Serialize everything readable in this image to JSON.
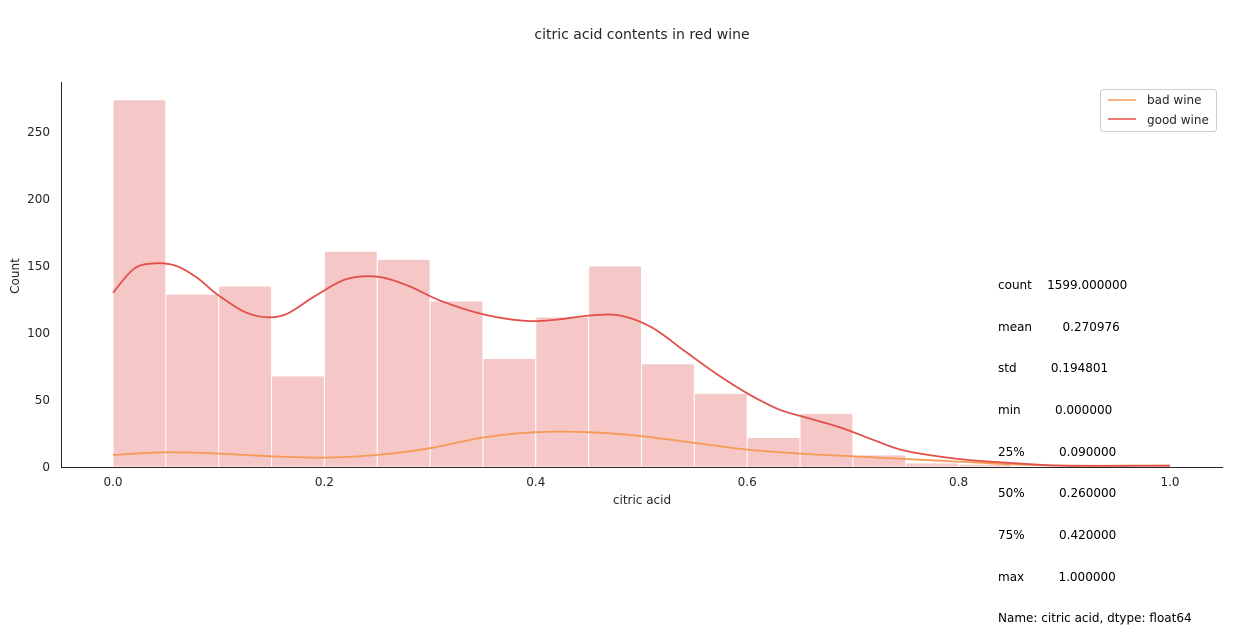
{
  "chart_data": {
    "type": "histogram",
    "title": "citric acid contents in red wine",
    "xlabel": "citric acid",
    "ylabel": "Count",
    "xlim": [
      -0.05,
      1.05
    ],
    "ylim": [
      0,
      288
    ],
    "x_ticks": [
      0.0,
      0.2,
      0.4,
      0.6,
      0.8,
      1.0
    ],
    "x_tick_labels": [
      "0.0",
      "0.2",
      "0.4",
      "0.6",
      "0.8",
      "1.0"
    ],
    "y_ticks": [
      0,
      50,
      100,
      150,
      200,
      250
    ],
    "y_tick_labels": [
      "0",
      "50",
      "100",
      "150",
      "200",
      "250"
    ],
    "grid": false,
    "legend_position": "top-right",
    "bin_edges": [
      0.0,
      0.05,
      0.1,
      0.15,
      0.2,
      0.25,
      0.3,
      0.35,
      0.4,
      0.45,
      0.5,
      0.55,
      0.6,
      0.65,
      0.7,
      0.75,
      0.8,
      0.85,
      0.9,
      0.95,
      1.0
    ],
    "series": [
      {
        "name": "bad wine",
        "line_color": "#f59b56",
        "bar_color": "#fde1c9",
        "counts": [
          21,
          9,
          9,
          6,
          2,
          9,
          30,
          20,
          24,
          35,
          21,
          8,
          6,
          10,
          8,
          2,
          0,
          0,
          0,
          1
        ],
        "kde": [
          [
            0.0,
            9
          ],
          [
            0.05,
            11
          ],
          [
            0.1,
            10
          ],
          [
            0.15,
            8
          ],
          [
            0.2,
            7
          ],
          [
            0.25,
            9
          ],
          [
            0.3,
            14
          ],
          [
            0.35,
            22
          ],
          [
            0.4,
            26
          ],
          [
            0.45,
            26
          ],
          [
            0.5,
            23
          ],
          [
            0.55,
            18
          ],
          [
            0.6,
            13
          ],
          [
            0.65,
            10
          ],
          [
            0.7,
            8
          ],
          [
            0.75,
            6
          ],
          [
            0.8,
            4
          ],
          [
            0.85,
            2
          ],
          [
            0.9,
            1
          ],
          [
            0.95,
            1
          ],
          [
            1.0,
            1
          ]
        ]
      },
      {
        "name": "good wine",
        "line_color": "#e2504a",
        "bar_color": "#f5c7c7",
        "counts": [
          274,
          129,
          135,
          68,
          161,
          155,
          124,
          81,
          112,
          150,
          77,
          55,
          22,
          40,
          9,
          3,
          2,
          0,
          1,
          2
        ],
        "kde": [
          [
            0.0,
            130
          ],
          [
            0.02,
            148
          ],
          [
            0.04,
            152
          ],
          [
            0.06,
            150
          ],
          [
            0.08,
            141
          ],
          [
            0.1,
            128
          ],
          [
            0.13,
            114
          ],
          [
            0.16,
            113
          ],
          [
            0.19,
            127
          ],
          [
            0.22,
            140
          ],
          [
            0.25,
            142
          ],
          [
            0.28,
            135
          ],
          [
            0.31,
            124
          ],
          [
            0.35,
            114
          ],
          [
            0.39,
            109
          ],
          [
            0.42,
            110
          ],
          [
            0.45,
            113
          ],
          [
            0.48,
            113
          ],
          [
            0.51,
            104
          ],
          [
            0.54,
            87
          ],
          [
            0.57,
            70
          ],
          [
            0.6,
            55
          ],
          [
            0.63,
            43
          ],
          [
            0.66,
            36
          ],
          [
            0.69,
            29
          ],
          [
            0.72,
            20
          ],
          [
            0.75,
            12
          ],
          [
            0.8,
            6
          ],
          [
            0.85,
            3
          ],
          [
            0.9,
            1
          ],
          [
            1.0,
            1
          ]
        ]
      }
    ],
    "legend_entries": [
      "bad wine",
      "good wine"
    ],
    "annotation_lines": [
      "count    1599.000000",
      "mean        0.270976",
      "std         0.194801",
      "min         0.000000",
      "25%         0.090000",
      "50%         0.260000",
      "75%         0.420000",
      "max         1.000000",
      "Name: citric acid, dtype: float64"
    ]
  }
}
